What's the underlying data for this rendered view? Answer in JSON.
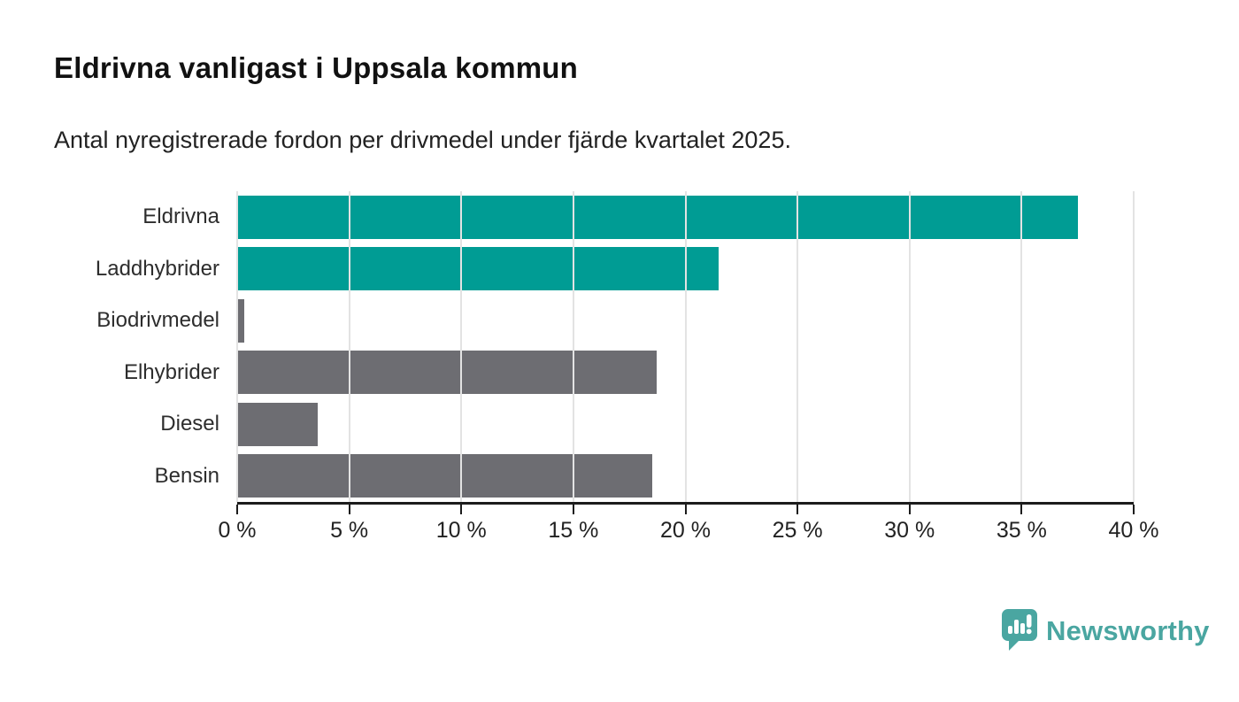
{
  "chart_data": {
    "type": "bar",
    "orientation": "horizontal",
    "title": "Eldrivna vanligast i Uppsala kommun",
    "subtitle": "Antal nyregistrerade fordon per drivmedel under fjärde kvartalet 2025.",
    "categories": [
      "Eldrivna",
      "Laddhybrider",
      "Biodrivmedel",
      "Elhybrider",
      "Diesel",
      "Bensin"
    ],
    "values": [
      37.5,
      21.5,
      0.3,
      18.7,
      3.6,
      18.5
    ],
    "bar_colors": [
      "#009c94",
      "#009c94",
      "#6d6d72",
      "#6d6d72",
      "#6d6d72",
      "#6d6d72"
    ],
    "xlabel": "",
    "ylabel": "",
    "xlim": [
      0,
      40
    ],
    "x_tick_values": [
      0,
      5,
      10,
      15,
      20,
      25,
      30,
      35,
      40
    ],
    "x_ticks": [
      "0 %",
      "5 %",
      "10 %",
      "15 %",
      "20 %",
      "25 %",
      "30 %",
      "35 %",
      "40 %"
    ],
    "grid": "vertical",
    "legend": "none"
  },
  "footer": {
    "brand_name": "Newsworthy",
    "brand_color": "#4aa6a1"
  },
  "colors": {
    "accent_teal": "#009c94",
    "bar_gray": "#6d6d72",
    "grid": "#e3e3e3",
    "axis": "#1c1c1c"
  }
}
